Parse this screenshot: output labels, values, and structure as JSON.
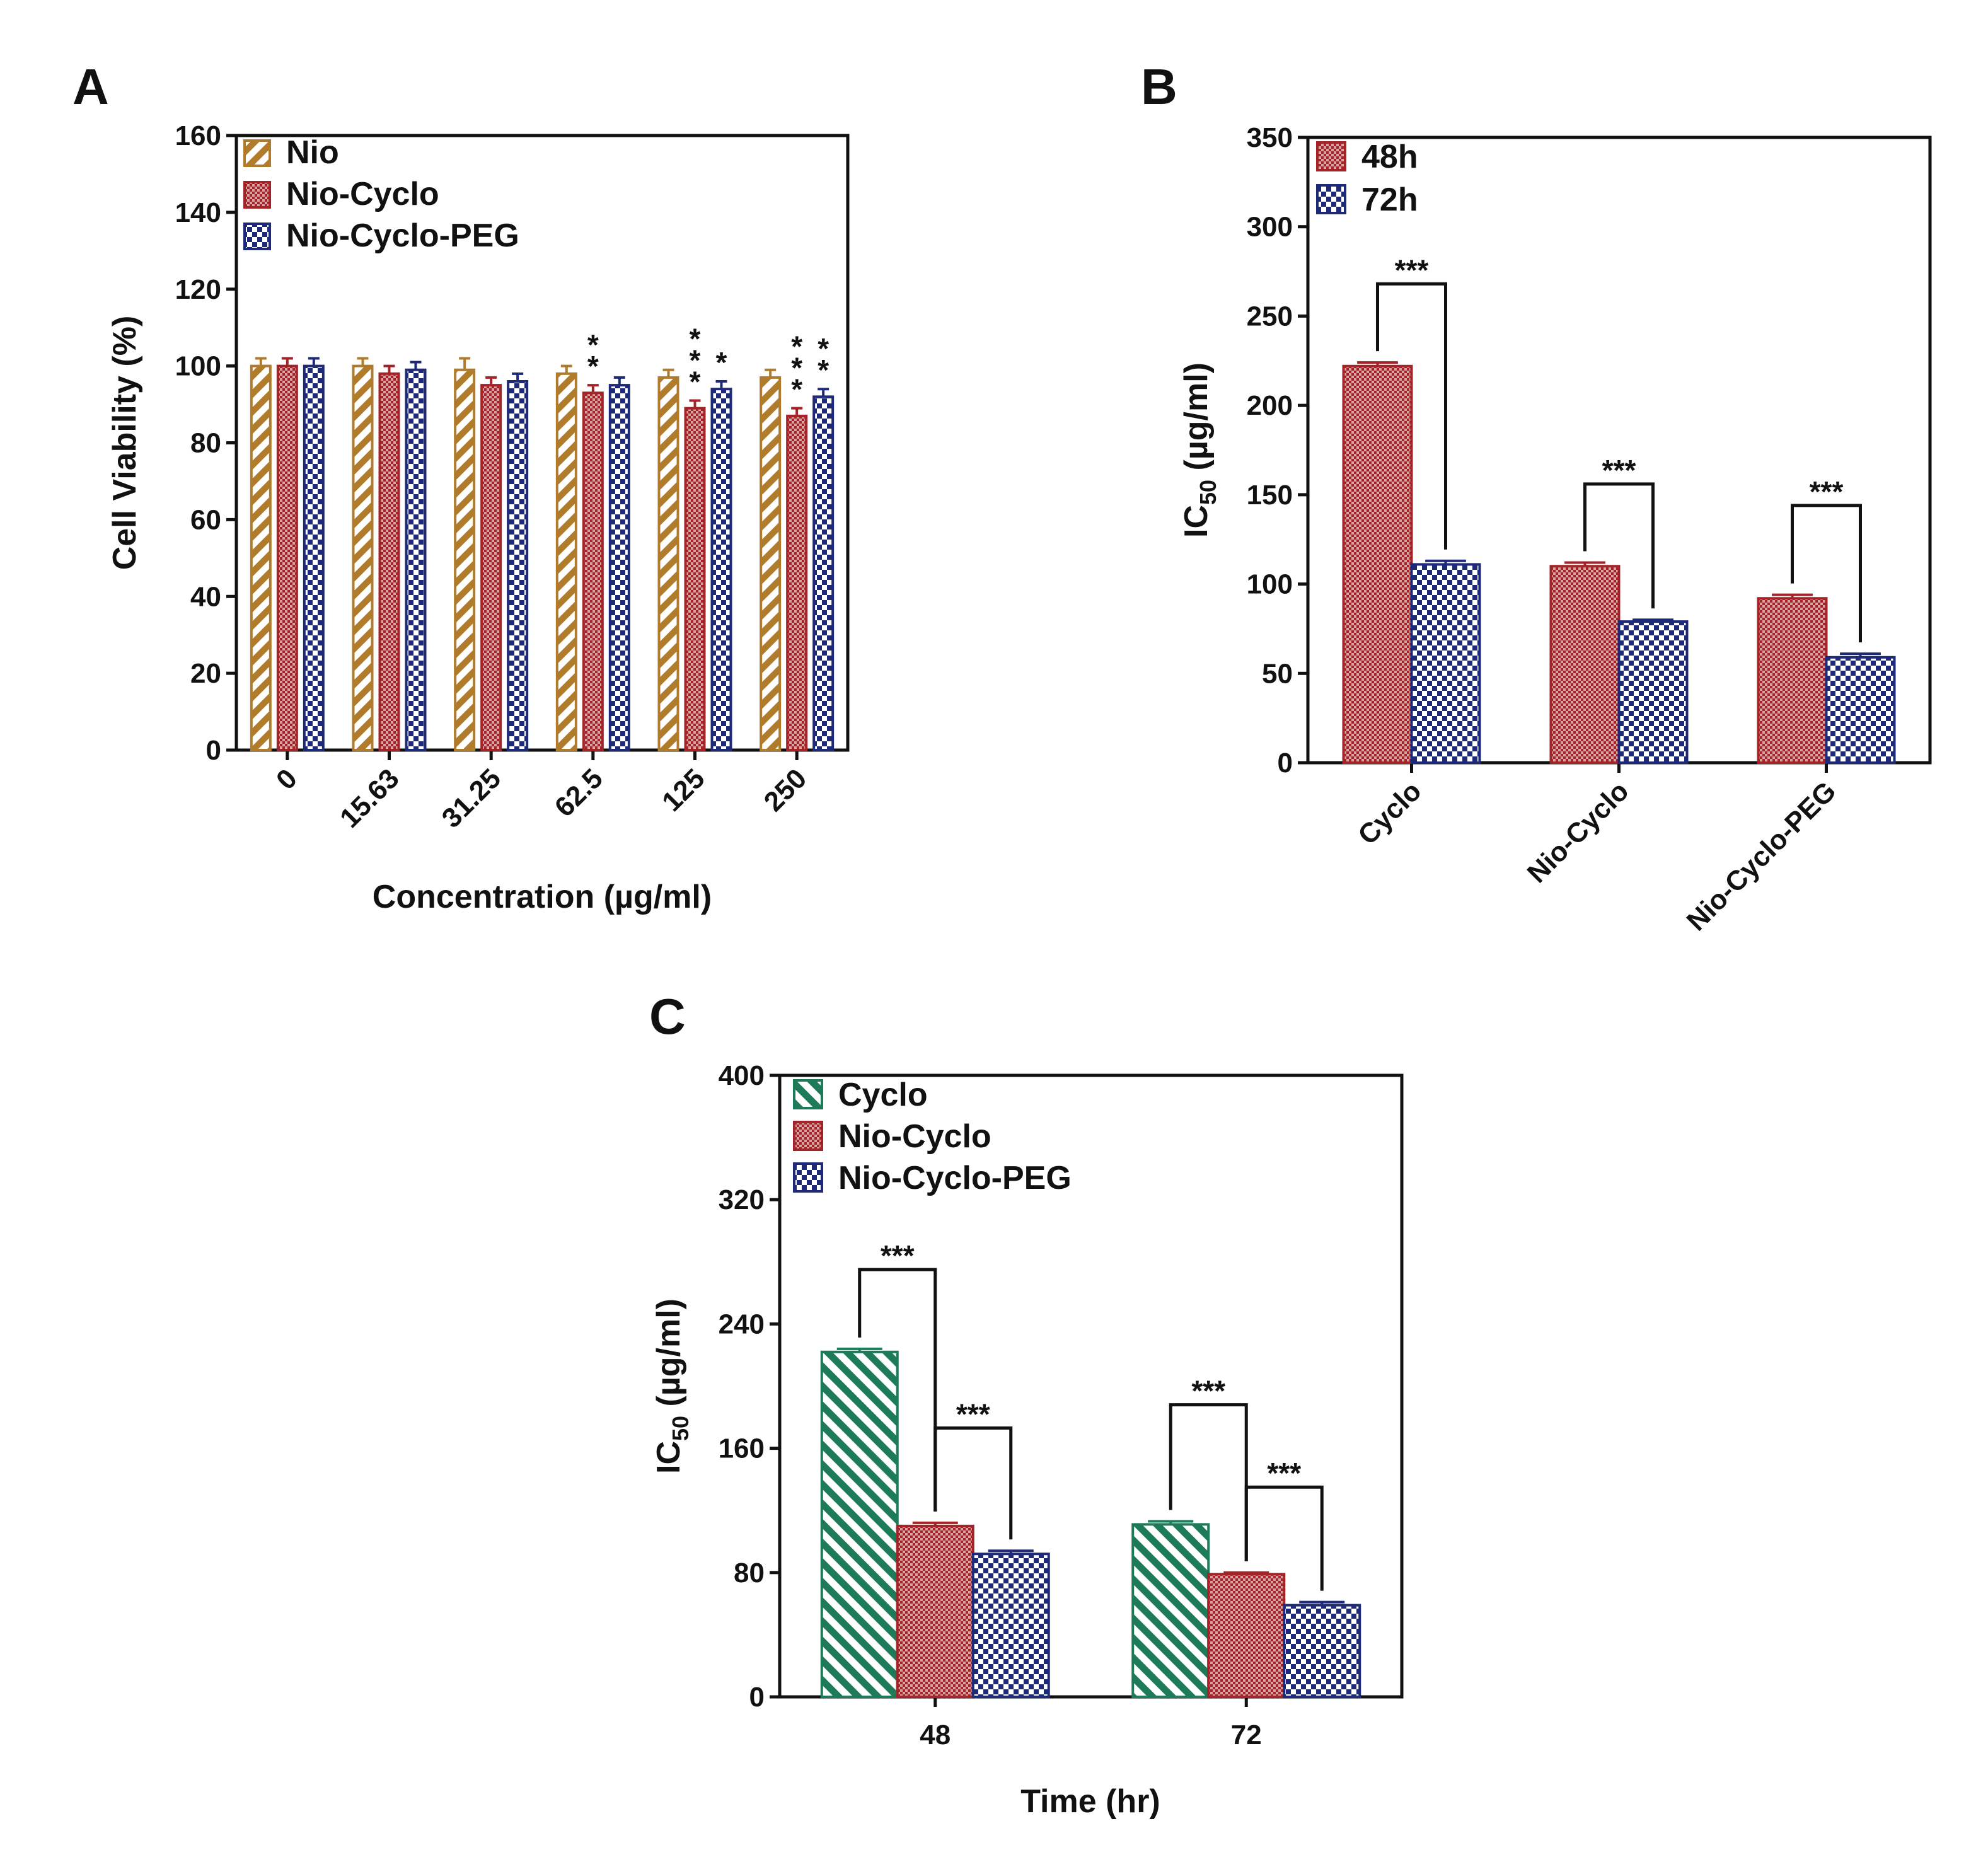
{
  "figure": {
    "panels": [
      "A",
      "B",
      "C"
    ]
  },
  "colors": {
    "nio": "#B07C2C",
    "red": "#A32428",
    "blue": "#1E2A78",
    "green": "#1E7B58",
    "axis": "#111111"
  },
  "chart_data": [
    {
      "panel": "A",
      "type": "bar",
      "title": "",
      "xlabel": "Concentration (µg/ml)",
      "ylabel": "Cell Viability (%)",
      "ylim": [
        0,
        160
      ],
      "yticks": [
        0,
        20,
        40,
        60,
        80,
        100,
        120,
        140,
        160
      ],
      "categories": [
        "0",
        "15.63",
        "31.25",
        "62.5",
        "125",
        "250"
      ],
      "legend_position": "top-left",
      "series": [
        {
          "name": "Nio",
          "pattern": "diag",
          "color": "nio",
          "values": [
            100,
            100,
            99,
            98,
            97,
            97
          ],
          "errors": [
            2,
            2,
            3,
            2,
            2,
            2
          ],
          "stars": [
            "",
            "",
            "",
            "",
            "",
            ""
          ]
        },
        {
          "name": "Nio-Cyclo",
          "pattern": "fine",
          "color": "red",
          "values": [
            100,
            98,
            95,
            93,
            89,
            87
          ],
          "errors": [
            2,
            2,
            2,
            2,
            2,
            2
          ],
          "stars": [
            "",
            "",
            "",
            "**",
            "***",
            "***"
          ]
        },
        {
          "name": "Nio-Cyclo-PEG",
          "pattern": "checker",
          "color": "blue",
          "values": [
            100,
            99,
            96,
            95,
            94,
            92
          ],
          "errors": [
            2,
            2,
            2,
            2,
            2,
            2
          ],
          "stars": [
            "",
            "",
            "",
            "",
            "*",
            "**"
          ]
        }
      ]
    },
    {
      "panel": "B",
      "type": "bar",
      "title": "",
      "xlabel": "",
      "ylabel": "IC50 (µg/ml)",
      "ylabel_main": "IC",
      "ylabel_sub": "50",
      "ylabel_rest": " (µg/ml)",
      "ylim": [
        0,
        350
      ],
      "yticks": [
        0,
        50,
        100,
        150,
        200,
        250,
        300,
        350
      ],
      "categories": [
        "Cyclo",
        "Nio-Cyclo",
        "Nio-Cyclo-PEG"
      ],
      "legend_position": "top-left",
      "series": [
        {
          "name": "48h",
          "pattern": "fine",
          "color": "red",
          "values": [
            222,
            110,
            92
          ],
          "errors": [
            2,
            2,
            2
          ]
        },
        {
          "name": "72h",
          "pattern": "checker",
          "color": "blue",
          "values": [
            111,
            79,
            59
          ],
          "errors": [
            2,
            1,
            2
          ]
        }
      ],
      "significance": [
        {
          "group": 0,
          "from": 0,
          "to": 1,
          "label": "***",
          "y": 268
        },
        {
          "group": 1,
          "from": 0,
          "to": 1,
          "label": "***",
          "y": 156
        },
        {
          "group": 2,
          "from": 0,
          "to": 1,
          "label": "***",
          "y": 144
        }
      ]
    },
    {
      "panel": "C",
      "type": "bar",
      "title": "",
      "xlabel": "Time (hr)",
      "ylabel": "IC50 (µg/ml)",
      "ylabel_main": "IC",
      "ylabel_sub": "50",
      "ylabel_rest": " (µg/ml)",
      "ylim": [
        0,
        400
      ],
      "yticks": [
        0,
        80,
        160,
        240,
        320,
        400
      ],
      "categories": [
        "48",
        "72"
      ],
      "legend_position": "top-left",
      "series": [
        {
          "name": "Cyclo",
          "pattern": "diag",
          "color": "green",
          "values": [
            222,
            111
          ],
          "errors": [
            2,
            2
          ]
        },
        {
          "name": "Nio-Cyclo",
          "pattern": "fine",
          "color": "red",
          "values": [
            110,
            79
          ],
          "errors": [
            2,
            1
          ]
        },
        {
          "name": "Nio-Cyclo-PEG",
          "pattern": "checker",
          "color": "blue",
          "values": [
            92,
            59
          ],
          "errors": [
            2,
            2
          ]
        }
      ],
      "significance": [
        {
          "group": 0,
          "from": 0,
          "to": 1,
          "label": "***",
          "y": 275
        },
        {
          "group": 0,
          "from": 1,
          "to": 2,
          "label": "***",
          "y": 173
        },
        {
          "group": 1,
          "from": 0,
          "to": 1,
          "label": "***",
          "y": 188
        },
        {
          "group": 1,
          "from": 1,
          "to": 2,
          "label": "***",
          "y": 135
        }
      ]
    }
  ]
}
